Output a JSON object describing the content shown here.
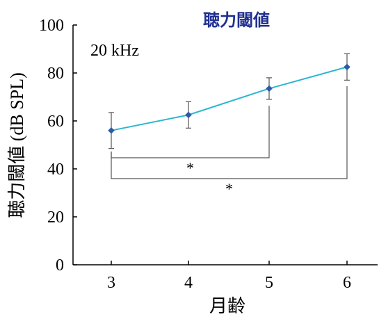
{
  "chart_data": {
    "type": "line",
    "title": "聴力閾値",
    "annotation": "20 kHz",
    "xlabel": "月齢",
    "ylabel": "聴力閾値 (dB SPL)",
    "categories": [
      "3",
      "4",
      "5",
      "6"
    ],
    "x": [
      3,
      4,
      5,
      6
    ],
    "yticks": [
      "0",
      "20",
      "40",
      "60",
      "80",
      "100"
    ],
    "ylim": [
      0,
      100
    ],
    "grid": false,
    "series": [
      {
        "values": [
          56,
          62.5,
          73.5,
          82.5
        ],
        "error": [
          7.5,
          5.5,
          4.5,
          5.5
        ]
      }
    ],
    "significance": [
      {
        "from": 3,
        "to": 5,
        "label": "*"
      },
      {
        "from": 3,
        "to": 6,
        "label": "*"
      }
    ],
    "colors": {
      "line": "#2eb5d4",
      "marker": "#2b5ba6",
      "title": "#1f2f8f",
      "axis": "#000000",
      "errorbar": "#555555",
      "bracket": "#555555"
    }
  }
}
